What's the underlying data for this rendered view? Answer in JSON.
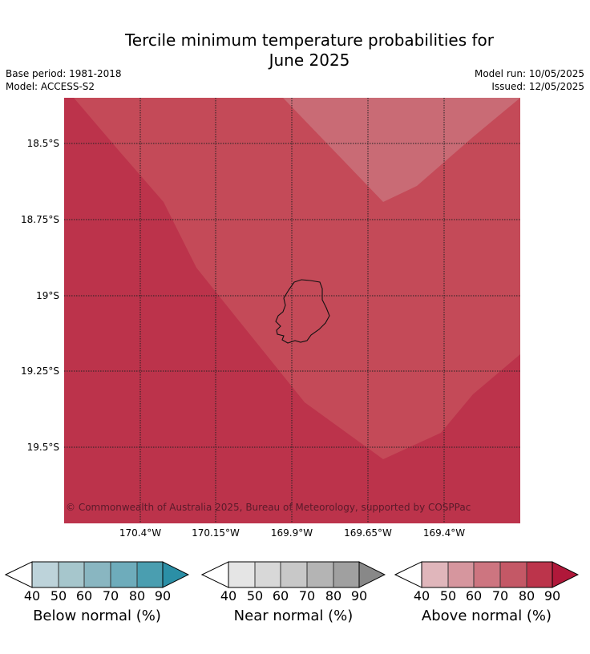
{
  "title": "Tercile minimum temperature probabilities for\nJune 2025",
  "base_period": "Base period: 1981-2018",
  "model": "Model: ACCESS-S2",
  "model_run": "Model run: 10/05/2025",
  "issued": "Issued: 12/05/2025",
  "copyright": "© Commonwealth of Australia 2025, Bureau of Meteorology, supported by COSPPac",
  "latitude_labels": [
    "18.5°S",
    "18.75°S",
    "19°S",
    "19.25°S",
    "19.5°S"
  ],
  "longitude_labels": [
    "170.4°W",
    "170.15°W",
    "169.9°W",
    "169.65°W",
    "169.4°W"
  ],
  "legends": [
    {
      "title": "Below normal (%)",
      "ticks": [
        "40",
        "50",
        "60",
        "70",
        "80",
        "90"
      ],
      "colors": [
        "#bdd3da",
        "#a6c6cc",
        "#89b6c1",
        "#6eacbb",
        "#4a9eb0",
        "#2b8fa6"
      ]
    },
    {
      "title": "Near normal (%)",
      "ticks": [
        "40",
        "50",
        "60",
        "70",
        "80",
        "90"
      ],
      "colors": [
        "#e5e5e5",
        "#d8d8d8",
        "#c8c8c8",
        "#b4b4b4",
        "#a0a0a0",
        "#888888"
      ]
    },
    {
      "title": "Above normal (%)",
      "ticks": [
        "40",
        "50",
        "60",
        "70",
        "80",
        "90"
      ],
      "colors": [
        "#e0b6bb",
        "#d6969e",
        "#cd7580",
        "#c45866",
        "#bc344b",
        "#b0183a"
      ]
    }
  ],
  "map_colors": {
    "band_80_90": "#bc334b",
    "band_70_80": "#c44a58",
    "band_60_70": "#c96b75"
  }
}
